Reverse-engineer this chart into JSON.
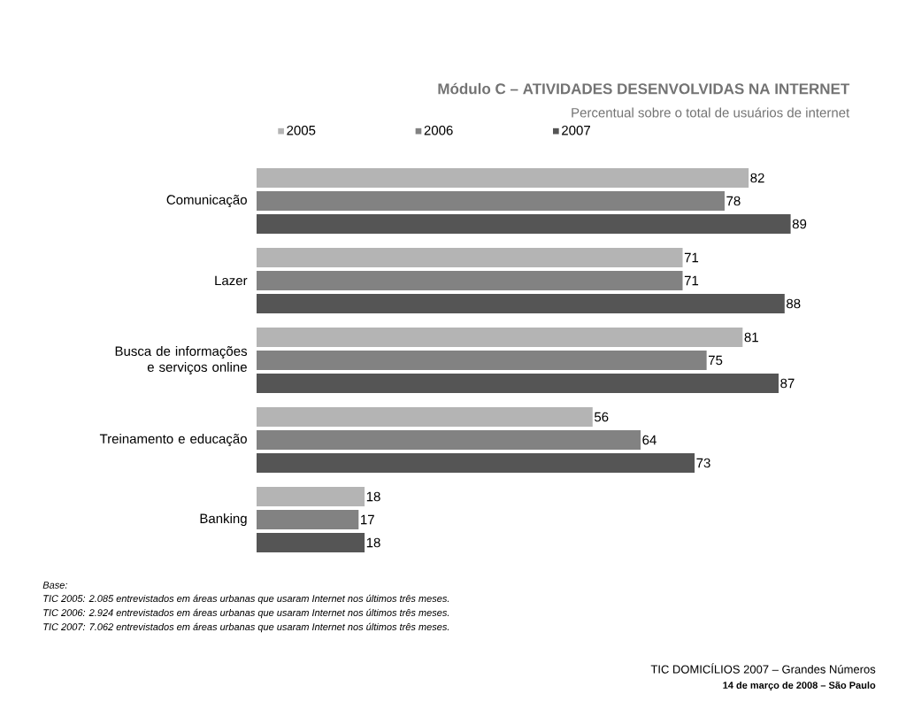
{
  "chart_data": {
    "type": "bar",
    "orientation": "horizontal",
    "title": "Módulo C – ATIVIDADES DESENVOLVIDAS NA INTERNET",
    "subtitle": "Percentual sobre o total de usuários de internet",
    "categories": [
      "Comunicação",
      "Lazer",
      "Busca de informações e serviços online",
      "Treinamento e educação",
      "Banking"
    ],
    "series": [
      {
        "name": "2005",
        "color": "#b4b4b4",
        "values": [
          82,
          71,
          81,
          56,
          18
        ]
      },
      {
        "name": "2006",
        "color": "#828282",
        "values": [
          78,
          71,
          75,
          64,
          17
        ]
      },
      {
        "name": "2007",
        "color": "#555555",
        "values": [
          89,
          88,
          87,
          73,
          18
        ]
      }
    ],
    "tick_labels": "y",
    "data_labels": true,
    "legend": "top",
    "annotations": [
      "Base:",
      "TIC 2005: 2.085 entrevistados em áreas urbanas que usaram Internet nos últimos três meses.",
      "TIC 2006: 2.924 entrevistados em áreas urbanas que usaram Internet nos últimos três meses.",
      "TIC 2007: 7.062 entrevistados em áreas urbanas que usaram Internet nos últimos três meses.",
      "TIC DOMICÍLIOS 2007 – Grandes Números",
      "14 de março de 2008 – São Paulo"
    ]
  }
}
